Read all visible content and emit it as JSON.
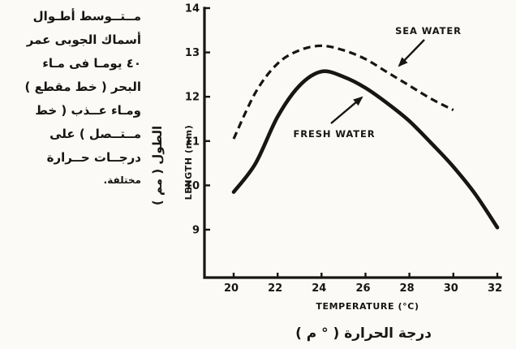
{
  "caption_ar": {
    "lines": [
      "مــتــوسط أطـوال",
      "أسماك الجوبى عمر",
      "٤٠ يومـا فى مـاء",
      "البحر ( خط مقطع )",
      "ومـاء عــذب ( خط",
      "مــتــصل ) على",
      "درجــات حــرارة",
      "مختلفة."
    ]
  },
  "chart_data": {
    "type": "line",
    "title": "",
    "xlabel": "TEMPERATURE (°C)",
    "xlabel_ar": "درجة الحرارة ( ° م )",
    "ylabel": "LENGTH (mm)",
    "ylabel_ar": "الطول ( مم )",
    "xlim": [
      20,
      32
    ],
    "ylim": [
      8.5,
      14
    ],
    "x_ticks": [
      20,
      22,
      24,
      26,
      28,
      30,
      32
    ],
    "y_ticks": [
      9,
      10,
      11,
      12,
      13,
      14
    ],
    "grid": false,
    "legend_position": "annotated-arrows",
    "line_color": "#161615",
    "series": [
      {
        "name": "SEA WATER",
        "line_style": "dashed",
        "x": [
          20,
          21,
          22,
          23,
          24,
          25,
          26,
          27,
          28,
          29,
          30
        ],
        "values": [
          11.05,
          12.1,
          12.75,
          13.05,
          13.15,
          13.05,
          12.85,
          12.55,
          12.25,
          11.95,
          11.7
        ]
      },
      {
        "name": "FRESH WATER",
        "line_style": "solid",
        "x": [
          20,
          21,
          22,
          23,
          24,
          25,
          26,
          27,
          28,
          29,
          30,
          31,
          32
        ],
        "values": [
          9.85,
          10.5,
          11.55,
          12.25,
          12.57,
          12.45,
          12.2,
          11.85,
          11.45,
          10.95,
          10.42,
          9.8,
          9.05
        ]
      }
    ]
  }
}
